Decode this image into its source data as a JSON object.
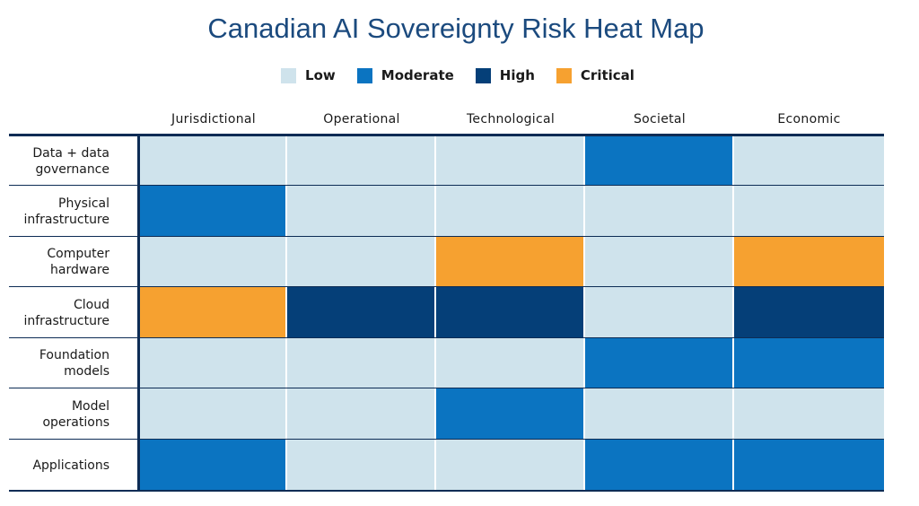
{
  "title": "Canadian AI Sovereignty Risk Heat Map",
  "legend": [
    {
      "label": "Low",
      "color": "#cfe3ec"
    },
    {
      "label": "Moderate",
      "color": "#0b74c1"
    },
    {
      "label": "High",
      "color": "#053f78"
    },
    {
      "label": "Critical",
      "color": "#f6a130"
    }
  ],
  "chart_data": {
    "type": "heatmap",
    "title": "Canadian AI Sovereignty Risk Heat Map",
    "columns": [
      "Jurisdictional",
      "Operational",
      "Technological",
      "Societal",
      "Economic"
    ],
    "rows": [
      {
        "label": "Data + data governance",
        "values": [
          "Low",
          "Low",
          "Low",
          "Moderate",
          "Low"
        ]
      },
      {
        "label": "Physical infrastructure",
        "values": [
          "Moderate",
          "Low",
          "Low",
          "Low",
          "Low"
        ]
      },
      {
        "label": "Computer hardware",
        "values": [
          "Low",
          "Low",
          "Critical",
          "Low",
          "Critical"
        ]
      },
      {
        "label": "Cloud infrastructure",
        "values": [
          "Critical",
          "High",
          "High",
          "Low",
          "High"
        ]
      },
      {
        "label": "Foundation models",
        "values": [
          "Low",
          "Low",
          "Low",
          "Moderate",
          "Moderate"
        ]
      },
      {
        "label": "Model operations",
        "values": [
          "Low",
          "Low",
          "Moderate",
          "Low",
          "Low"
        ]
      },
      {
        "label": "Applications",
        "values": [
          "Moderate",
          "Low",
          "Low",
          "Moderate",
          "Moderate"
        ]
      }
    ],
    "legend_position": "top-center"
  }
}
